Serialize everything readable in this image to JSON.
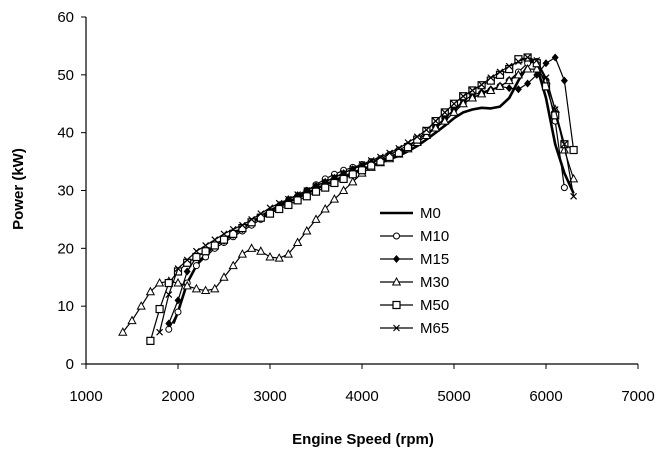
{
  "chart_data": {
    "type": "line",
    "xlabel": "Engine Speed (rpm)",
    "ylabel": "Power  (kW)",
    "xlim": [
      1000,
      7000
    ],
    "ylim": [
      0,
      60
    ],
    "xticks": [
      1000,
      2000,
      3000,
      4000,
      5000,
      6000,
      7000
    ],
    "yticks": [
      0,
      10,
      20,
      30,
      40,
      50,
      60
    ],
    "grid": false,
    "legend_position": "center",
    "series": [
      {
        "name": "M0",
        "marker": "none",
        "stroke_width": 2.6,
        "x": [
          1950,
          2000,
          2100,
          2200,
          2300,
          2400,
          2500,
          2600,
          2700,
          2800,
          2900,
          3000,
          3100,
          3200,
          3300,
          3400,
          3500,
          3600,
          3700,
          3800,
          3900,
          4000,
          4100,
          4200,
          4300,
          4400,
          4500,
          4600,
          4700,
          4800,
          4900,
          5000,
          5100,
          5200,
          5300,
          5400,
          5500,
          5600,
          5700,
          5800,
          5850,
          5900,
          6000,
          6100,
          6200,
          6300
        ],
        "y": [
          7,
          9,
          14,
          17,
          19,
          20.5,
          21.5,
          22.5,
          23.5,
          24.5,
          25.5,
          26.5,
          27.3,
          28,
          28.8,
          29.5,
          30.3,
          31,
          31.7,
          32.4,
          33,
          33.7,
          34.2,
          34.8,
          35.4,
          36,
          36.8,
          37.7,
          38.8,
          40,
          41.2,
          42.5,
          43.5,
          44,
          44.3,
          44.2,
          44.5,
          46,
          49,
          51.5,
          52.5,
          51.5,
          46,
          38,
          33,
          29.5
        ]
      },
      {
        "name": "M10",
        "marker": "circle",
        "stroke_width": 1.2,
        "x": [
          1900,
          2000,
          2100,
          2200,
          2300,
          2400,
          2500,
          2600,
          2700,
          2800,
          2900,
          3000,
          3100,
          3200,
          3300,
          3400,
          3500,
          3600,
          3700,
          3800,
          3900,
          4000,
          4100,
          4200,
          4300,
          4400,
          4500,
          4600,
          4700,
          4800,
          4900,
          5000,
          5100,
          5200,
          5300,
          5400,
          5500,
          5600,
          5700,
          5800,
          5900,
          6000,
          6100,
          6200
        ],
        "y": [
          6,
          9,
          14,
          17,
          18.5,
          20,
          21,
          22,
          23,
          24,
          25,
          26,
          27,
          28,
          29,
          30,
          31,
          32,
          32.8,
          33.5,
          34,
          34.5,
          35,
          35.5,
          36.2,
          37,
          37.8,
          38.7,
          39.8,
          41,
          42.5,
          44,
          45,
          46,
          46.8,
          47.3,
          48,
          49,
          50.5,
          52,
          52.3,
          49,
          42,
          30.5
        ]
      },
      {
        "name": "M15",
        "marker": "diamond",
        "stroke_width": 1.2,
        "x": [
          1900,
          2000,
          2100,
          2200,
          2300,
          2400,
          2500,
          2600,
          2700,
          2800,
          2900,
          3000,
          3100,
          3200,
          3300,
          3400,
          3500,
          3600,
          3700,
          3800,
          3900,
          4000,
          4100,
          4200,
          4300,
          4400,
          4500,
          4600,
          4700,
          4800,
          4900,
          5000,
          5100,
          5200,
          5300,
          5400,
          5500,
          5600,
          5700,
          5800,
          5900,
          6000,
          6100,
          6200,
          6300
        ],
        "y": [
          7,
          11,
          16,
          18.5,
          19.5,
          20.5,
          21.3,
          22.3,
          23.3,
          24.5,
          25.5,
          26.5,
          27.5,
          28.5,
          29.2,
          30,
          30.8,
          31.5,
          32.2,
          33,
          33.7,
          34.3,
          34.8,
          35.3,
          35.8,
          36.5,
          37.3,
          38.3,
          39.5,
          41,
          42.5,
          44,
          45.5,
          46.5,
          47,
          47.5,
          48,
          47.7,
          47.5,
          48.5,
          50,
          52,
          53,
          49,
          37
        ]
      },
      {
        "name": "M30",
        "marker": "triangle",
        "stroke_width": 1.2,
        "x": [
          1400,
          1500,
          1600,
          1700,
          1800,
          1900,
          2000,
          2100,
          2200,
          2300,
          2400,
          2500,
          2600,
          2700,
          2800,
          2900,
          3000,
          3100,
          3200,
          3300,
          3400,
          3500,
          3600,
          3700,
          3800,
          3900,
          4000,
          4100,
          4200,
          4300,
          4400,
          4500,
          4600,
          4700,
          4800,
          4900,
          5000,
          5100,
          5200,
          5300,
          5400,
          5500,
          5600,
          5700,
          5800,
          5900,
          6000,
          6100,
          6200,
          6300
        ],
        "y": [
          5.5,
          7.5,
          10,
          12.5,
          14,
          14.3,
          14,
          13.5,
          13,
          12.7,
          13,
          15,
          17,
          19,
          20,
          19.5,
          18.5,
          18.3,
          19,
          21,
          23,
          25,
          26.8,
          28.5,
          30,
          31.5,
          33,
          34,
          34.8,
          35.5,
          36.3,
          37.2,
          38.3,
          39.5,
          40.8,
          42,
          43.5,
          45,
          46,
          46.7,
          47.3,
          48,
          49,
          50,
          51,
          51,
          49,
          44,
          37,
          32
        ]
      },
      {
        "name": "M50",
        "marker": "square",
        "stroke_width": 1.2,
        "x": [
          1700,
          1800,
          1900,
          2000,
          2100,
          2200,
          2300,
          2400,
          2500,
          2600,
          2700,
          2800,
          2900,
          3000,
          3100,
          3200,
          3300,
          3400,
          3500,
          3600,
          3700,
          3800,
          3900,
          4000,
          4100,
          4200,
          4300,
          4400,
          4500,
          4600,
          4700,
          4800,
          4900,
          5000,
          5100,
          5200,
          5300,
          5400,
          5500,
          5600,
          5700,
          5800,
          5900,
          6000,
          6100,
          6200,
          6300
        ],
        "y": [
          4,
          9.5,
          14,
          16,
          17.5,
          18.5,
          19.5,
          20.5,
          21.5,
          22.5,
          23.5,
          24.5,
          25.3,
          26,
          26.8,
          27.5,
          28.3,
          29,
          29.8,
          30.5,
          31.3,
          32,
          32.8,
          33.5,
          34.3,
          35,
          35.8,
          36.5,
          37.5,
          38.8,
          40.3,
          42,
          43.5,
          45,
          46.3,
          47.3,
          48.2,
          49,
          50,
          51,
          52.7,
          53,
          52,
          48,
          43,
          38,
          37
        ]
      },
      {
        "name": "M65",
        "marker": "cross",
        "stroke_width": 1.2,
        "x": [
          1800,
          1900,
          2000,
          2100,
          2200,
          2300,
          2400,
          2500,
          2600,
          2700,
          2800,
          2900,
          3000,
          3100,
          3200,
          3300,
          3400,
          3500,
          3600,
          3700,
          3800,
          3900,
          4000,
          4100,
          4200,
          4300,
          4400,
          4500,
          4600,
          4700,
          4800,
          4900,
          5000,
          5100,
          5200,
          5300,
          5400,
          5500,
          5600,
          5700,
          5800,
          5900,
          6000,
          6100,
          6200,
          6300
        ],
        "y": [
          5.5,
          12,
          16.5,
          18,
          19.5,
          20.5,
          21.5,
          22.5,
          23.3,
          24,
          25,
          26,
          27,
          27.8,
          28.5,
          29.3,
          30,
          30.8,
          31.5,
          32.3,
          33,
          33.8,
          34.5,
          35.2,
          35.8,
          36.5,
          37.3,
          38.3,
          39.3,
          40.5,
          42,
          43.5,
          45,
          46.3,
          47.3,
          48.3,
          49.5,
          50.5,
          51.5,
          52.3,
          53,
          52.5,
          49.5,
          44,
          38,
          29
        ]
      }
    ]
  }
}
